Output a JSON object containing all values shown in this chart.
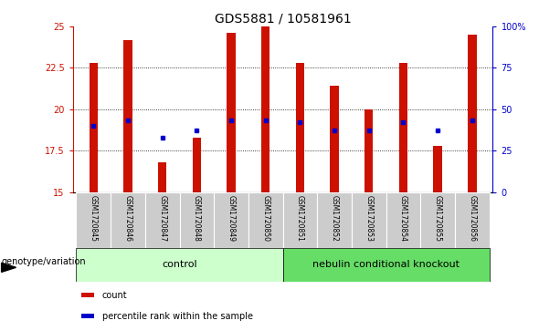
{
  "title": "GDS5881 / 10581961",
  "samples": [
    "GSM1720845",
    "GSM1720846",
    "GSM1720847",
    "GSM1720848",
    "GSM1720849",
    "GSM1720850",
    "GSM1720851",
    "GSM1720852",
    "GSM1720853",
    "GSM1720854",
    "GSM1720855",
    "GSM1720856"
  ],
  "bar_values": [
    22.8,
    24.2,
    16.8,
    18.3,
    24.6,
    25.0,
    22.8,
    21.4,
    20.0,
    22.8,
    17.8,
    24.5
  ],
  "percentile_values": [
    19.0,
    19.3,
    18.3,
    18.7,
    19.3,
    19.3,
    19.2,
    18.7,
    18.7,
    19.2,
    18.7,
    19.3
  ],
  "ymin": 15,
  "ymax": 25,
  "yticks_left": [
    15,
    17.5,
    20,
    22.5,
    25
  ],
  "yticks_right_vals": [
    0,
    25,
    50,
    75,
    100
  ],
  "bar_color": "#cc1100",
  "dot_color": "#0000cc",
  "bar_width": 0.25,
  "control_indices": [
    0,
    1,
    2,
    3,
    4,
    5
  ],
  "knockout_indices": [
    6,
    7,
    8,
    9,
    10,
    11
  ],
  "control_label": "control",
  "knockout_label": "nebulin conditional knockout",
  "control_color": "#ccffcc",
  "knockout_color": "#66dd66",
  "sample_box_color": "#cccccc",
  "genotype_label": "genotype/variation",
  "legend_items": [
    {
      "label": "count",
      "color": "#cc1100"
    },
    {
      "label": "percentile rank within the sample",
      "color": "#0000cc"
    }
  ],
  "title_fontsize": 10,
  "tick_fontsize": 7,
  "sample_fontsize": 5.5,
  "group_fontsize": 8,
  "legend_fontsize": 7,
  "genotype_fontsize": 7
}
